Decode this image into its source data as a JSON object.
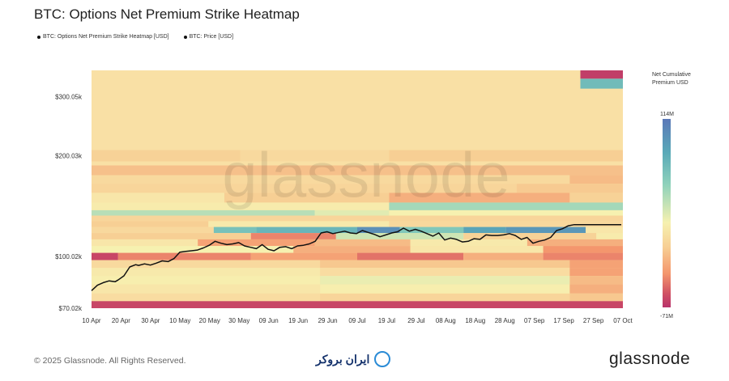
{
  "header": {
    "title": "BTC: Options Net Premium Strike Heatmap"
  },
  "legend": [
    {
      "label": "BTC: Options Net Premium Strike Heatmap [USD]"
    },
    {
      "label": "BTC: Price [USD]"
    }
  ],
  "colorbar": {
    "label": "Net Cumulative Premium USD",
    "max_label": "114M",
    "min_label": "-71M",
    "max": 114,
    "min": -71
  },
  "watermark": "glassnode",
  "footer": {
    "copyright": "© 2025 Glassnode. All Rights Reserved.",
    "partner": "ایران بروکر",
    "brand": "glassnode"
  },
  "chart_data": {
    "type": "heatmap",
    "title": "BTC: Options Net Premium Strike Heatmap",
    "xlabel": "",
    "ylabel": "",
    "x_ticks": [
      "10 Apr",
      "20 Apr",
      "30 Apr",
      "10 May",
      "20 May",
      "30 May",
      "09 Jun",
      "19 Jun",
      "29 Jun",
      "09 Jul",
      "19 Jul",
      "29 Jul",
      "08 Aug",
      "18 Aug",
      "28 Aug",
      "07 Sep",
      "17 Sep",
      "27 Sep",
      "07 Oct"
    ],
    "y_ticks": [
      {
        "label": "$300.05k",
        "value": 300050
      },
      {
        "label": "$200.03k",
        "value": 200030
      },
      {
        "label": "$100.02k",
        "value": 100020
      },
      {
        "label": "$70.02k",
        "value": 70020
      }
    ],
    "ylim": [
      70020,
      360000
    ],
    "y_scale": "log",
    "heatmap_bands": [
      {
        "strike": 350000,
        "segments": [
          [
            0,
            0.92,
            0.05
          ],
          [
            0.92,
            1.0,
            -65
          ]
        ]
      },
      {
        "strike": 330000,
        "segments": [
          [
            0,
            0.92,
            0.05
          ],
          [
            0.92,
            1.0,
            60
          ]
        ]
      },
      {
        "strike": 300050,
        "segments": [
          [
            0,
            1.0,
            0.0
          ]
        ]
      },
      {
        "strike": 200030,
        "segments": [
          [
            0,
            0.28,
            -10
          ],
          [
            0.28,
            0.56,
            -5
          ],
          [
            0.56,
            1.0,
            -12
          ]
        ]
      },
      {
        "strike": 180000,
        "segments": [
          [
            0,
            1.0,
            -18
          ]
        ]
      },
      {
        "strike": 170000,
        "segments": [
          [
            0,
            0.9,
            -5
          ],
          [
            0.9,
            1.0,
            -20
          ]
        ]
      },
      {
        "strike": 160000,
        "segments": [
          [
            0,
            0.8,
            -8
          ],
          [
            0.8,
            1.0,
            -14
          ]
        ]
      },
      {
        "strike": 150000,
        "segments": [
          [
            0,
            0.25,
            5
          ],
          [
            0.25,
            0.56,
            -12
          ],
          [
            0.56,
            0.9,
            -25
          ],
          [
            0.9,
            1.0,
            -10
          ]
        ]
      },
      {
        "strike": 140000,
        "segments": [
          [
            0,
            0.56,
            10
          ],
          [
            0.56,
            1.0,
            35
          ]
        ]
      },
      {
        "strike": 135000,
        "segments": [
          [
            0,
            0.42,
            30
          ],
          [
            0.42,
            0.56,
            20
          ],
          [
            0.56,
            1.0,
            15
          ]
        ]
      },
      {
        "strike": 130000,
        "segments": [
          [
            0,
            1.0,
            -8
          ]
        ]
      },
      {
        "strike": 125000,
        "segments": [
          [
            0,
            0.22,
            -12
          ],
          [
            0.22,
            0.56,
            8
          ],
          [
            0.56,
            1.0,
            -6
          ]
        ]
      },
      {
        "strike": 120000,
        "segments": [
          [
            0,
            0.23,
            -6
          ],
          [
            0.23,
            0.31,
            55
          ],
          [
            0.31,
            0.5,
            65
          ],
          [
            0.5,
            0.58,
            95
          ],
          [
            0.58,
            0.7,
            50
          ],
          [
            0.7,
            0.78,
            80
          ],
          [
            0.78,
            0.93,
            90
          ],
          [
            0.93,
            1.0,
            5
          ]
        ]
      },
      {
        "strike": 115000,
        "segments": [
          [
            0,
            0.3,
            -12
          ],
          [
            0.3,
            0.46,
            -40
          ],
          [
            0.46,
            0.7,
            25
          ],
          [
            0.7,
            0.95,
            -10
          ],
          [
            0.95,
            1.0,
            10
          ]
        ]
      },
      {
        "strike": 110000,
        "segments": [
          [
            0,
            0.2,
            5
          ],
          [
            0.2,
            0.42,
            -30
          ],
          [
            0.42,
            0.6,
            -20
          ],
          [
            0.6,
            0.82,
            8
          ],
          [
            0.82,
            1.0,
            -25
          ]
        ]
      },
      {
        "strike": 105000,
        "segments": [
          [
            0,
            0.38,
            15
          ],
          [
            0.38,
            0.6,
            -25
          ],
          [
            0.6,
            0.85,
            5
          ],
          [
            0.85,
            1.0,
            -35
          ]
        ]
      },
      {
        "strike": 100020,
        "segments": [
          [
            0,
            0.05,
            -60
          ],
          [
            0.05,
            0.3,
            -40
          ],
          [
            0.3,
            0.5,
            -30
          ],
          [
            0.5,
            0.7,
            -45
          ],
          [
            0.7,
            0.85,
            -25
          ],
          [
            0.85,
            1.0,
            -40
          ]
        ]
      },
      {
        "strike": 95000,
        "segments": [
          [
            0,
            0.43,
            -5
          ],
          [
            0.43,
            0.9,
            -15
          ],
          [
            0.9,
            1.0,
            -30
          ]
        ]
      },
      {
        "strike": 90000,
        "segments": [
          [
            0,
            0.43,
            8
          ],
          [
            0.43,
            0.9,
            -3
          ],
          [
            0.9,
            1.0,
            -30
          ]
        ]
      },
      {
        "strike": 85000,
        "segments": [
          [
            0,
            0.43,
            12
          ],
          [
            0.43,
            0.9,
            18
          ],
          [
            0.9,
            1.0,
            -20
          ]
        ]
      },
      {
        "strike": 80000,
        "segments": [
          [
            0,
            0.43,
            5
          ],
          [
            0.43,
            0.9,
            12
          ],
          [
            0.9,
            1.0,
            -25
          ]
        ]
      },
      {
        "strike": 75000,
        "segments": [
          [
            0,
            0.43,
            -3
          ],
          [
            0.43,
            0.9,
            -8
          ],
          [
            0.9,
            1.0,
            -15
          ]
        ]
      },
      {
        "strike": 72000,
        "segments": [
          [
            0,
            1.0,
            -60
          ]
        ]
      }
    ],
    "series": [
      {
        "name": "BTC: Price [USD]",
        "type": "line",
        "x_day_offset": [
          0,
          2,
          4,
          6,
          8,
          9,
          11,
          13,
          15,
          16,
          18,
          20,
          22,
          24,
          26,
          28,
          30,
          32,
          34,
          36,
          38,
          40,
          42,
          44,
          46,
          48,
          50,
          52,
          54,
          56,
          58,
          60,
          62,
          64,
          66,
          68,
          70,
          72,
          74,
          76,
          78,
          80,
          82,
          84,
          86,
          88,
          90,
          92,
          94,
          96,
          98,
          100,
          102,
          104,
          106,
          108,
          110,
          112,
          114,
          116,
          118,
          120,
          122,
          124,
          126,
          128,
          130,
          132,
          134,
          136,
          138,
          140,
          142,
          144,
          146,
          148,
          150,
          152,
          154,
          156,
          158,
          160,
          162,
          164,
          166,
          168,
          170,
          172,
          174,
          176,
          178,
          180
        ],
        "values": [
          79000,
          82000,
          83500,
          84500,
          84000,
          85000,
          87500,
          93000,
          94500,
          94000,
          95000,
          94200,
          95500,
          97000,
          96500,
          98500,
          103000,
          103500,
          104000,
          104500,
          106000,
          108000,
          111000,
          109500,
          108500,
          109000,
          110000,
          107500,
          106500,
          105500,
          108500,
          105000,
          104000,
          106500,
          107000,
          105500,
          107500,
          108000,
          109000,
          111000,
          117500,
          118500,
          117000,
          118000,
          119000,
          117500,
          117000,
          119500,
          118000,
          116500,
          114500,
          116000,
          117500,
          118500,
          121500,
          119000,
          120500,
          119000,
          117000,
          115000,
          117500,
          112000,
          113500,
          112500,
          110500,
          111000,
          113000,
          112500,
          116000,
          115500,
          115500,
          116000,
          117000,
          115500,
          112500,
          114000,
          109500,
          111000,
          112000,
          114000,
          119500,
          121000,
          123500,
          124500,
          124500,
          124500,
          124500,
          124500,
          124500,
          124500,
          124500,
          124500
        ]
      }
    ]
  }
}
